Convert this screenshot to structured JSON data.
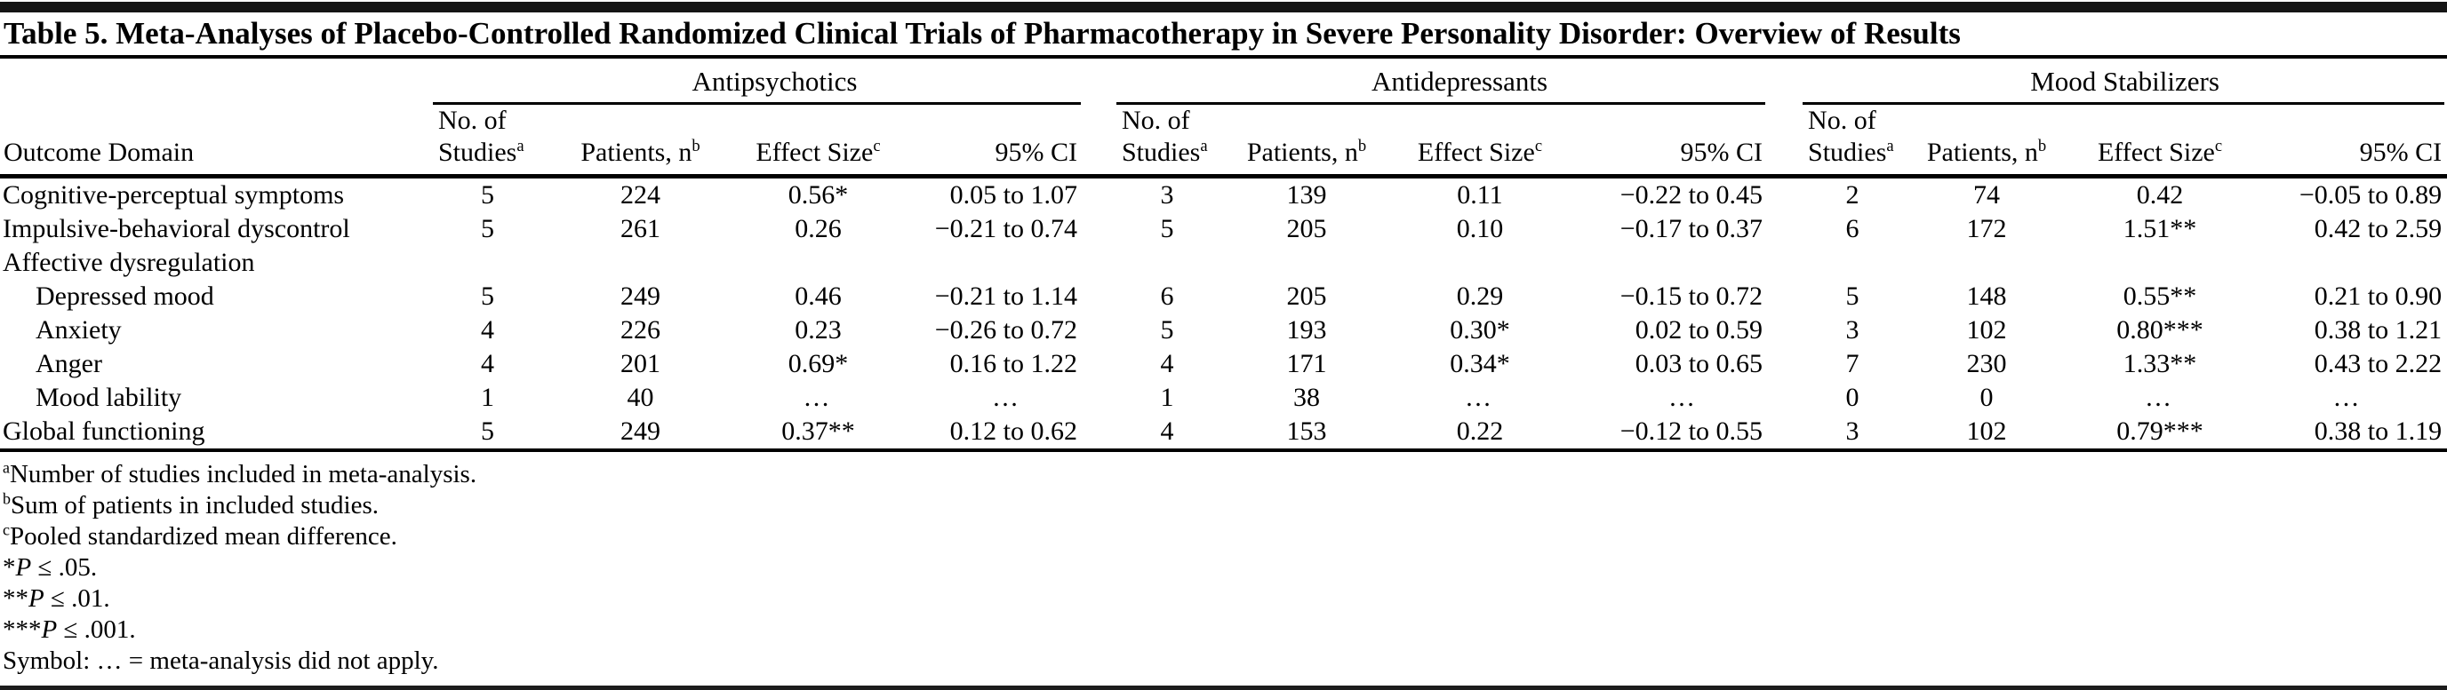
{
  "colors": {
    "text": "#000000",
    "rule": "#000000",
    "background": "#ffffff"
  },
  "table": {
    "title": "Table 5. Meta-Analyses of Placebo-Controlled Randomized Clinical Trials of Pharmacotherapy in Severe Personality Disorder: Overview of Results",
    "row_header_label": "Outcome Domain",
    "groups": [
      {
        "label": "Antipsychotics",
        "columns": [
          {
            "top": "No. of",
            "label": "Studies",
            "sup": "a"
          },
          {
            "top": "",
            "label": "Patients, n",
            "sup": "b"
          },
          {
            "top": "",
            "label": "Effect Size",
            "sup": "c"
          },
          {
            "top": "",
            "label": "95% CI",
            "sup": ""
          }
        ]
      },
      {
        "label": "Antidepressants",
        "columns": [
          {
            "top": "No. of",
            "label": "Studies",
            "sup": "a"
          },
          {
            "top": "",
            "label": "Patients, n",
            "sup": "b"
          },
          {
            "top": "",
            "label": "Effect Size",
            "sup": "c"
          },
          {
            "top": "",
            "label": "95% CI",
            "sup": ""
          }
        ]
      },
      {
        "label": "Mood Stabilizers",
        "columns": [
          {
            "top": "No. of",
            "label": "Studies",
            "sup": "a"
          },
          {
            "top": "",
            "label": "Patients, n",
            "sup": "b"
          },
          {
            "top": "",
            "label": "Effect Size",
            "sup": "c"
          },
          {
            "top": "",
            "label": "95% CI",
            "sup": ""
          }
        ]
      }
    ],
    "rows": [
      {
        "label": "Cognitive-perceptual symptoms",
        "indent": false,
        "section": false,
        "cells": [
          "5",
          "224",
          "0.56*",
          "0.05 to 1.07",
          "3",
          "139",
          "0.11",
          "−0.22 to 0.45",
          "2",
          "74",
          "0.42",
          "−0.05 to 0.89"
        ]
      },
      {
        "label": "Impulsive-behavioral dyscontrol",
        "indent": false,
        "section": false,
        "cells": [
          "5",
          "261",
          "0.26",
          "−0.21 to 0.74",
          "5",
          "205",
          "0.10",
          "−0.17 to 0.37",
          "6",
          "172",
          "1.51**",
          "0.42 to 2.59"
        ]
      },
      {
        "label": "Affective dysregulation",
        "indent": false,
        "section": true,
        "cells": [
          "",
          "",
          "",
          "",
          "",
          "",
          "",
          "",
          "",
          "",
          "",
          ""
        ]
      },
      {
        "label": "Depressed mood",
        "indent": true,
        "section": false,
        "cells": [
          "5",
          "249",
          "0.46",
          "−0.21 to 1.14",
          "6",
          "205",
          "0.29",
          "−0.15 to 0.72",
          "5",
          "148",
          "0.55**",
          "0.21 to 0.90"
        ]
      },
      {
        "label": "Anxiety",
        "indent": true,
        "section": false,
        "cells": [
          "4",
          "226",
          "0.23",
          "−0.26 to 0.72",
          "5",
          "193",
          "0.30*",
          "0.02 to 0.59",
          "3",
          "102",
          "0.80***",
          "0.38 to 1.21"
        ]
      },
      {
        "label": "Anger",
        "indent": true,
        "section": false,
        "cells": [
          "4",
          "201",
          "0.69*",
          "0.16 to 1.22",
          "4",
          "171",
          "0.34*",
          "0.03 to 0.65",
          "7",
          "230",
          "1.33**",
          "0.43 to 2.22"
        ]
      },
      {
        "label": "Mood lability",
        "indent": true,
        "section": false,
        "cells": [
          "1",
          "40",
          "…",
          "…",
          "1",
          "38",
          "…",
          "…",
          "0",
          "0",
          "…",
          "…"
        ]
      },
      {
        "label": "Global functioning",
        "indent": false,
        "section": false,
        "cells": [
          "5",
          "249",
          "0.37**",
          "0.12 to 0.62",
          "4",
          "153",
          "0.22",
          "−0.12 to 0.55",
          "3",
          "102",
          "0.79***",
          "0.38 to 1.19"
        ]
      }
    ]
  },
  "footnotes": [
    {
      "sup": "a",
      "stars": "",
      "p": "",
      "text": "Number of studies included in meta-analysis."
    },
    {
      "sup": "b",
      "stars": "",
      "p": "",
      "text": "Sum of patients in included studies."
    },
    {
      "sup": "c",
      "stars": "",
      "p": "",
      "text": "Pooled standardized mean difference."
    },
    {
      "sup": "",
      "stars": "*",
      "p": "P",
      "text": " ≤ .05."
    },
    {
      "sup": "",
      "stars": "**",
      "p": "P",
      "text": " ≤ .01."
    },
    {
      "sup": "",
      "stars": "***",
      "p": "P",
      "text": " ≤ .001."
    },
    {
      "sup": "",
      "stars": "",
      "p": "",
      "text": "Symbol: … = meta-analysis did not apply."
    }
  ]
}
